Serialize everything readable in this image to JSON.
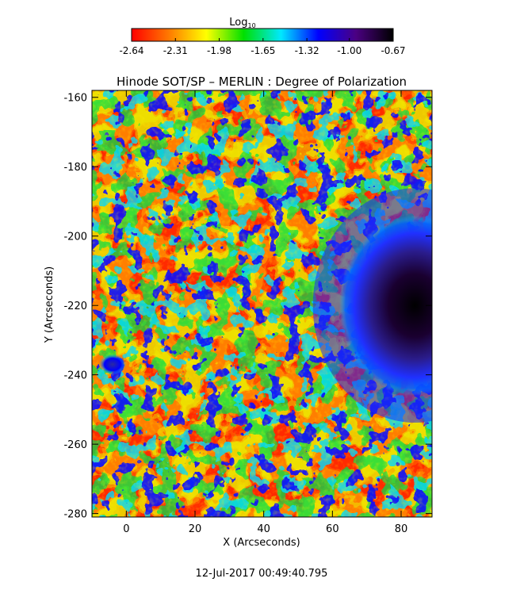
{
  "colorbar": {
    "label": "Log",
    "label_subscript": "10",
    "tick_labels": [
      "-2.64",
      "-2.31",
      "-1.98",
      "-1.65",
      "-1.32",
      "-1.00",
      "-0.67"
    ],
    "range": [
      -2.64,
      -0.67
    ],
    "colors": [
      "#ff0000",
      "#ff7a00",
      "#ffff00",
      "#00e000",
      "#00e8ff",
      "#0000ff",
      "#4b0082",
      "#000000"
    ]
  },
  "chart_data": {
    "type": "heatmap",
    "title": "Hinode SOT/SP – MERLIN : Degree of Polarization",
    "xlabel": "X (Arcseconds)",
    "ylabel": "Y (Arcseconds)",
    "xlim": [
      -10,
      89
    ],
    "ylim": [
      -281,
      -158
    ],
    "x_ticks": [
      0,
      20,
      40,
      60,
      80
    ],
    "y_ticks": [
      -160,
      -180,
      -200,
      -220,
      -240,
      -260,
      -280
    ],
    "value_scale": "log10",
    "value_range": [
      -2.64,
      -0.67
    ],
    "features": [
      {
        "kind": "sunspot",
        "center": [
          84,
          -220
        ],
        "radius_x": 22,
        "radius_y": 26,
        "peak_value": -0.67
      },
      {
        "kind": "pore",
        "center": [
          -4,
          -237
        ],
        "radius_x": 4,
        "radius_y": 3,
        "peak_value": -1.0
      }
    ],
    "timestamp": "12-Jul-2017 00:49:40.795"
  }
}
